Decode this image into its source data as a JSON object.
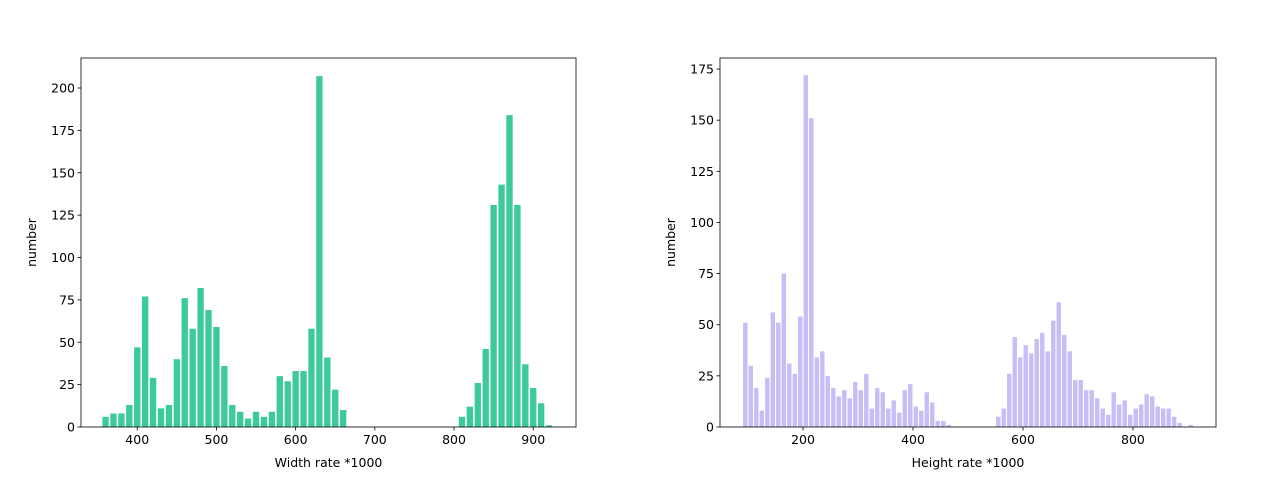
{
  "chart_data": [
    {
      "type": "bar",
      "xlabel": "Width rate *1000",
      "ylabel": "number",
      "color": "#3cc99b",
      "x": [
        360,
        370,
        380,
        390,
        400,
        410,
        420,
        430,
        440,
        450,
        460,
        470,
        480,
        490,
        500,
        510,
        520,
        530,
        540,
        550,
        560,
        570,
        580,
        590,
        600,
        610,
        620,
        630,
        640,
        650,
        660,
        810,
        820,
        830,
        840,
        850,
        860,
        870,
        880,
        890,
        900,
        910,
        920
      ],
      "values": [
        6,
        8,
        8,
        13,
        47,
        77,
        29,
        11,
        13,
        40,
        76,
        58,
        82,
        69,
        59,
        36,
        13,
        9,
        5,
        9,
        6,
        9,
        30,
        27,
        33,
        33,
        58,
        207,
        41,
        22,
        10,
        6,
        12,
        26,
        46,
        131,
        143,
        184,
        131,
        37,
        23,
        14,
        1
      ],
      "xlim": [
        329,
        954
      ],
      "ylim": [
        0,
        217.7
      ],
      "xticks": [
        400,
        500,
        600,
        700,
        800,
        900
      ],
      "yticks": [
        0,
        25,
        50,
        75,
        100,
        125,
        150,
        175,
        200
      ]
    },
    {
      "type": "bar",
      "xlabel": "Height rate *1000",
      "ylabel": "number",
      "color": "#c8bdf7",
      "x": [
        95,
        105,
        115,
        125,
        135,
        145,
        155,
        165,
        175,
        185,
        195,
        205,
        215,
        225,
        235,
        245,
        255,
        265,
        275,
        285,
        295,
        305,
        315,
        325,
        335,
        345,
        355,
        365,
        375,
        385,
        395,
        405,
        415,
        425,
        435,
        445,
        455,
        465,
        555,
        565,
        575,
        585,
        595,
        605,
        615,
        625,
        635,
        645,
        655,
        665,
        675,
        685,
        695,
        705,
        715,
        725,
        735,
        745,
        755,
        765,
        775,
        785,
        795,
        805,
        815,
        825,
        835,
        845,
        855,
        865,
        875,
        885,
        905
      ],
      "values": [
        51,
        30,
        19,
        8,
        24,
        56,
        51,
        75,
        31,
        26,
        54,
        172,
        151,
        34,
        37,
        25,
        19,
        15,
        18,
        14,
        22,
        18,
        26,
        9,
        19,
        17,
        9,
        13,
        7,
        18,
        21,
        10,
        8,
        17,
        12,
        3,
        3,
        1,
        5,
        9,
        26,
        44,
        34,
        40,
        36,
        43,
        46,
        37,
        52,
        61,
        45,
        37,
        23,
        23,
        18,
        18,
        14,
        9,
        6,
        17,
        11,
        13,
        6,
        9,
        11,
        16,
        15,
        10,
        9,
        9,
        5,
        2,
        1
      ],
      "xlim": [
        49,
        951
      ],
      "ylim": [
        0,
        180.4
      ],
      "xticks": [
        200,
        400,
        600,
        800
      ],
      "yticks": [
        0,
        25,
        50,
        75,
        100,
        125,
        150,
        175
      ]
    }
  ]
}
